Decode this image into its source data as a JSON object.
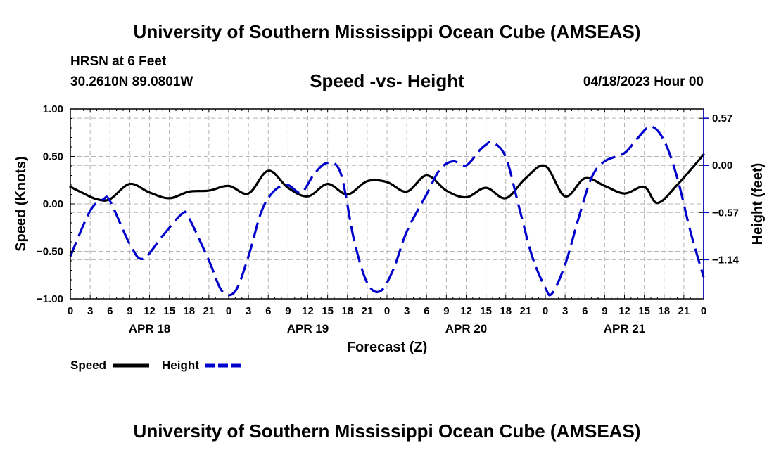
{
  "header": {
    "title": "University of Southern Mississippi Ocean Cube (AMSEAS)",
    "station": "HRSN at 6 Feet",
    "coords": "30.2610N  89.0801W",
    "subtitle": "Speed -vs- Height",
    "date": "04/18/2023 Hour 00"
  },
  "footer": {
    "title": "University of Southern Mississippi Ocean Cube (AMSEAS)"
  },
  "legend": {
    "speed_label": "Speed",
    "height_label": "Height"
  },
  "colors": {
    "speed": "#000000",
    "height": "#0000cc",
    "grid": "#b4b4b4"
  },
  "chart_data": {
    "type": "line",
    "xlabel": "Forecast (Z)",
    "ylabel_left": "Speed (Knots)",
    "ylabel_right": "Height (feet)",
    "x_range_hours": [
      0,
      96
    ],
    "x_ticks": [
      {
        "hour": 0,
        "label": "0"
      },
      {
        "hour": 3,
        "label": "3"
      },
      {
        "hour": 6,
        "label": "6"
      },
      {
        "hour": 9,
        "label": "9"
      },
      {
        "hour": 12,
        "label": "12"
      },
      {
        "hour": 15,
        "label": "15"
      },
      {
        "hour": 18,
        "label": "18"
      },
      {
        "hour": 21,
        "label": "21"
      },
      {
        "hour": 24,
        "label": "0"
      },
      {
        "hour": 27,
        "label": "3"
      },
      {
        "hour": 30,
        "label": "6"
      },
      {
        "hour": 33,
        "label": "9"
      },
      {
        "hour": 36,
        "label": "12"
      },
      {
        "hour": 39,
        "label": "15"
      },
      {
        "hour": 42,
        "label": "18"
      },
      {
        "hour": 45,
        "label": "21"
      },
      {
        "hour": 48,
        "label": "0"
      },
      {
        "hour": 51,
        "label": "3"
      },
      {
        "hour": 54,
        "label": "6"
      },
      {
        "hour": 57,
        "label": "9"
      },
      {
        "hour": 60,
        "label": "12"
      },
      {
        "hour": 63,
        "label": "15"
      },
      {
        "hour": 66,
        "label": "18"
      },
      {
        "hour": 69,
        "label": "21"
      },
      {
        "hour": 72,
        "label": "0"
      },
      {
        "hour": 75,
        "label": "3"
      },
      {
        "hour": 78,
        "label": "6"
      },
      {
        "hour": 81,
        "label": "9"
      },
      {
        "hour": 84,
        "label": "12"
      },
      {
        "hour": 87,
        "label": "15"
      },
      {
        "hour": 90,
        "label": "18"
      },
      {
        "hour": 93,
        "label": "21"
      },
      {
        "hour": 96,
        "label": "0"
      }
    ],
    "day_labels": [
      {
        "hour": 12,
        "label": "APR 18"
      },
      {
        "hour": 36,
        "label": "APR 19"
      },
      {
        "hour": 60,
        "label": "APR 20"
      },
      {
        "hour": 84,
        "label": "APR 21"
      }
    ],
    "ylim_left": [
      -1.0,
      1.0
    ],
    "yticks_left": [
      {
        "value": 1.0,
        "label": "1.00"
      },
      {
        "value": 0.5,
        "label": "0.50"
      },
      {
        "value": 0.0,
        "label": "0.00"
      },
      {
        "value": -0.5,
        "label": "−0.50"
      },
      {
        "value": -1.0,
        "label": "−1.00"
      }
    ],
    "ylim_right": [
      -1.613,
      0.682
    ],
    "yticks_right": [
      {
        "value": 0.57,
        "label": "0.57"
      },
      {
        "value": 0.0,
        "label": "0.00"
      },
      {
        "value": -0.57,
        "label": "−0.57"
      },
      {
        "value": -1.14,
        "label": "−1.14"
      }
    ],
    "series": [
      {
        "name": "Speed",
        "axis": "left",
        "style": "solid",
        "points": [
          [
            0,
            0.18
          ],
          [
            2,
            0.11
          ],
          [
            4,
            0.05
          ],
          [
            6,
            0.05
          ],
          [
            9,
            0.21
          ],
          [
            12,
            0.12
          ],
          [
            15,
            0.06
          ],
          [
            18,
            0.13
          ],
          [
            21,
            0.14
          ],
          [
            24,
            0.19
          ],
          [
            27,
            0.11
          ],
          [
            30,
            0.35
          ],
          [
            33,
            0.17
          ],
          [
            36,
            0.08
          ],
          [
            39,
            0.21
          ],
          [
            42,
            0.1
          ],
          [
            45,
            0.24
          ],
          [
            48,
            0.23
          ],
          [
            51,
            0.13
          ],
          [
            54,
            0.3
          ],
          [
            57,
            0.14
          ],
          [
            60,
            0.07
          ],
          [
            63,
            0.17
          ],
          [
            66,
            0.06
          ],
          [
            69,
            0.27
          ],
          [
            72,
            0.4
          ],
          [
            75,
            0.08
          ],
          [
            78,
            0.27
          ],
          [
            81,
            0.19
          ],
          [
            84,
            0.11
          ],
          [
            87,
            0.18
          ],
          [
            89,
            0.01
          ],
          [
            92,
            0.2
          ],
          [
            96,
            0.52
          ]
        ]
      },
      {
        "name": "Height",
        "axis": "right",
        "style": "dashed",
        "points": [
          [
            0,
            -1.1
          ],
          [
            3,
            -0.55
          ],
          [
            5,
            -0.41
          ],
          [
            6,
            -0.43
          ],
          [
            9,
            -0.95
          ],
          [
            11,
            -1.13
          ],
          [
            14,
            -0.85
          ],
          [
            17,
            -0.58
          ],
          [
            18,
            -0.64
          ],
          [
            21,
            -1.15
          ],
          [
            23,
            -1.52
          ],
          [
            25,
            -1.52
          ],
          [
            27,
            -1.1
          ],
          [
            29,
            -0.55
          ],
          [
            31,
            -0.3
          ],
          [
            33,
            -0.24
          ],
          [
            35,
            -0.33
          ],
          [
            37,
            -0.1
          ],
          [
            39,
            0.03
          ],
          [
            41,
            -0.1
          ],
          [
            43,
            -0.9
          ],
          [
            45,
            -1.42
          ],
          [
            47,
            -1.52
          ],
          [
            49,
            -1.25
          ],
          [
            51,
            -0.8
          ],
          [
            54,
            -0.35
          ],
          [
            56,
            -0.05
          ],
          [
            58,
            0.05
          ],
          [
            60,
            0.0
          ],
          [
            62,
            0.18
          ],
          [
            63,
            0.25
          ],
          [
            64,
            0.28
          ],
          [
            66,
            0.1
          ],
          [
            68,
            -0.5
          ],
          [
            70,
            -1.1
          ],
          [
            72,
            -1.48
          ],
          [
            73,
            -1.55
          ],
          [
            75,
            -1.2
          ],
          [
            77,
            -0.65
          ],
          [
            79,
            -0.15
          ],
          [
            81,
            0.05
          ],
          [
            84,
            0.15
          ],
          [
            86,
            0.33
          ],
          [
            88,
            0.47
          ],
          [
            90,
            0.3
          ],
          [
            92,
            -0.15
          ],
          [
            94,
            -0.8
          ],
          [
            96,
            -1.35
          ]
        ]
      }
    ]
  }
}
